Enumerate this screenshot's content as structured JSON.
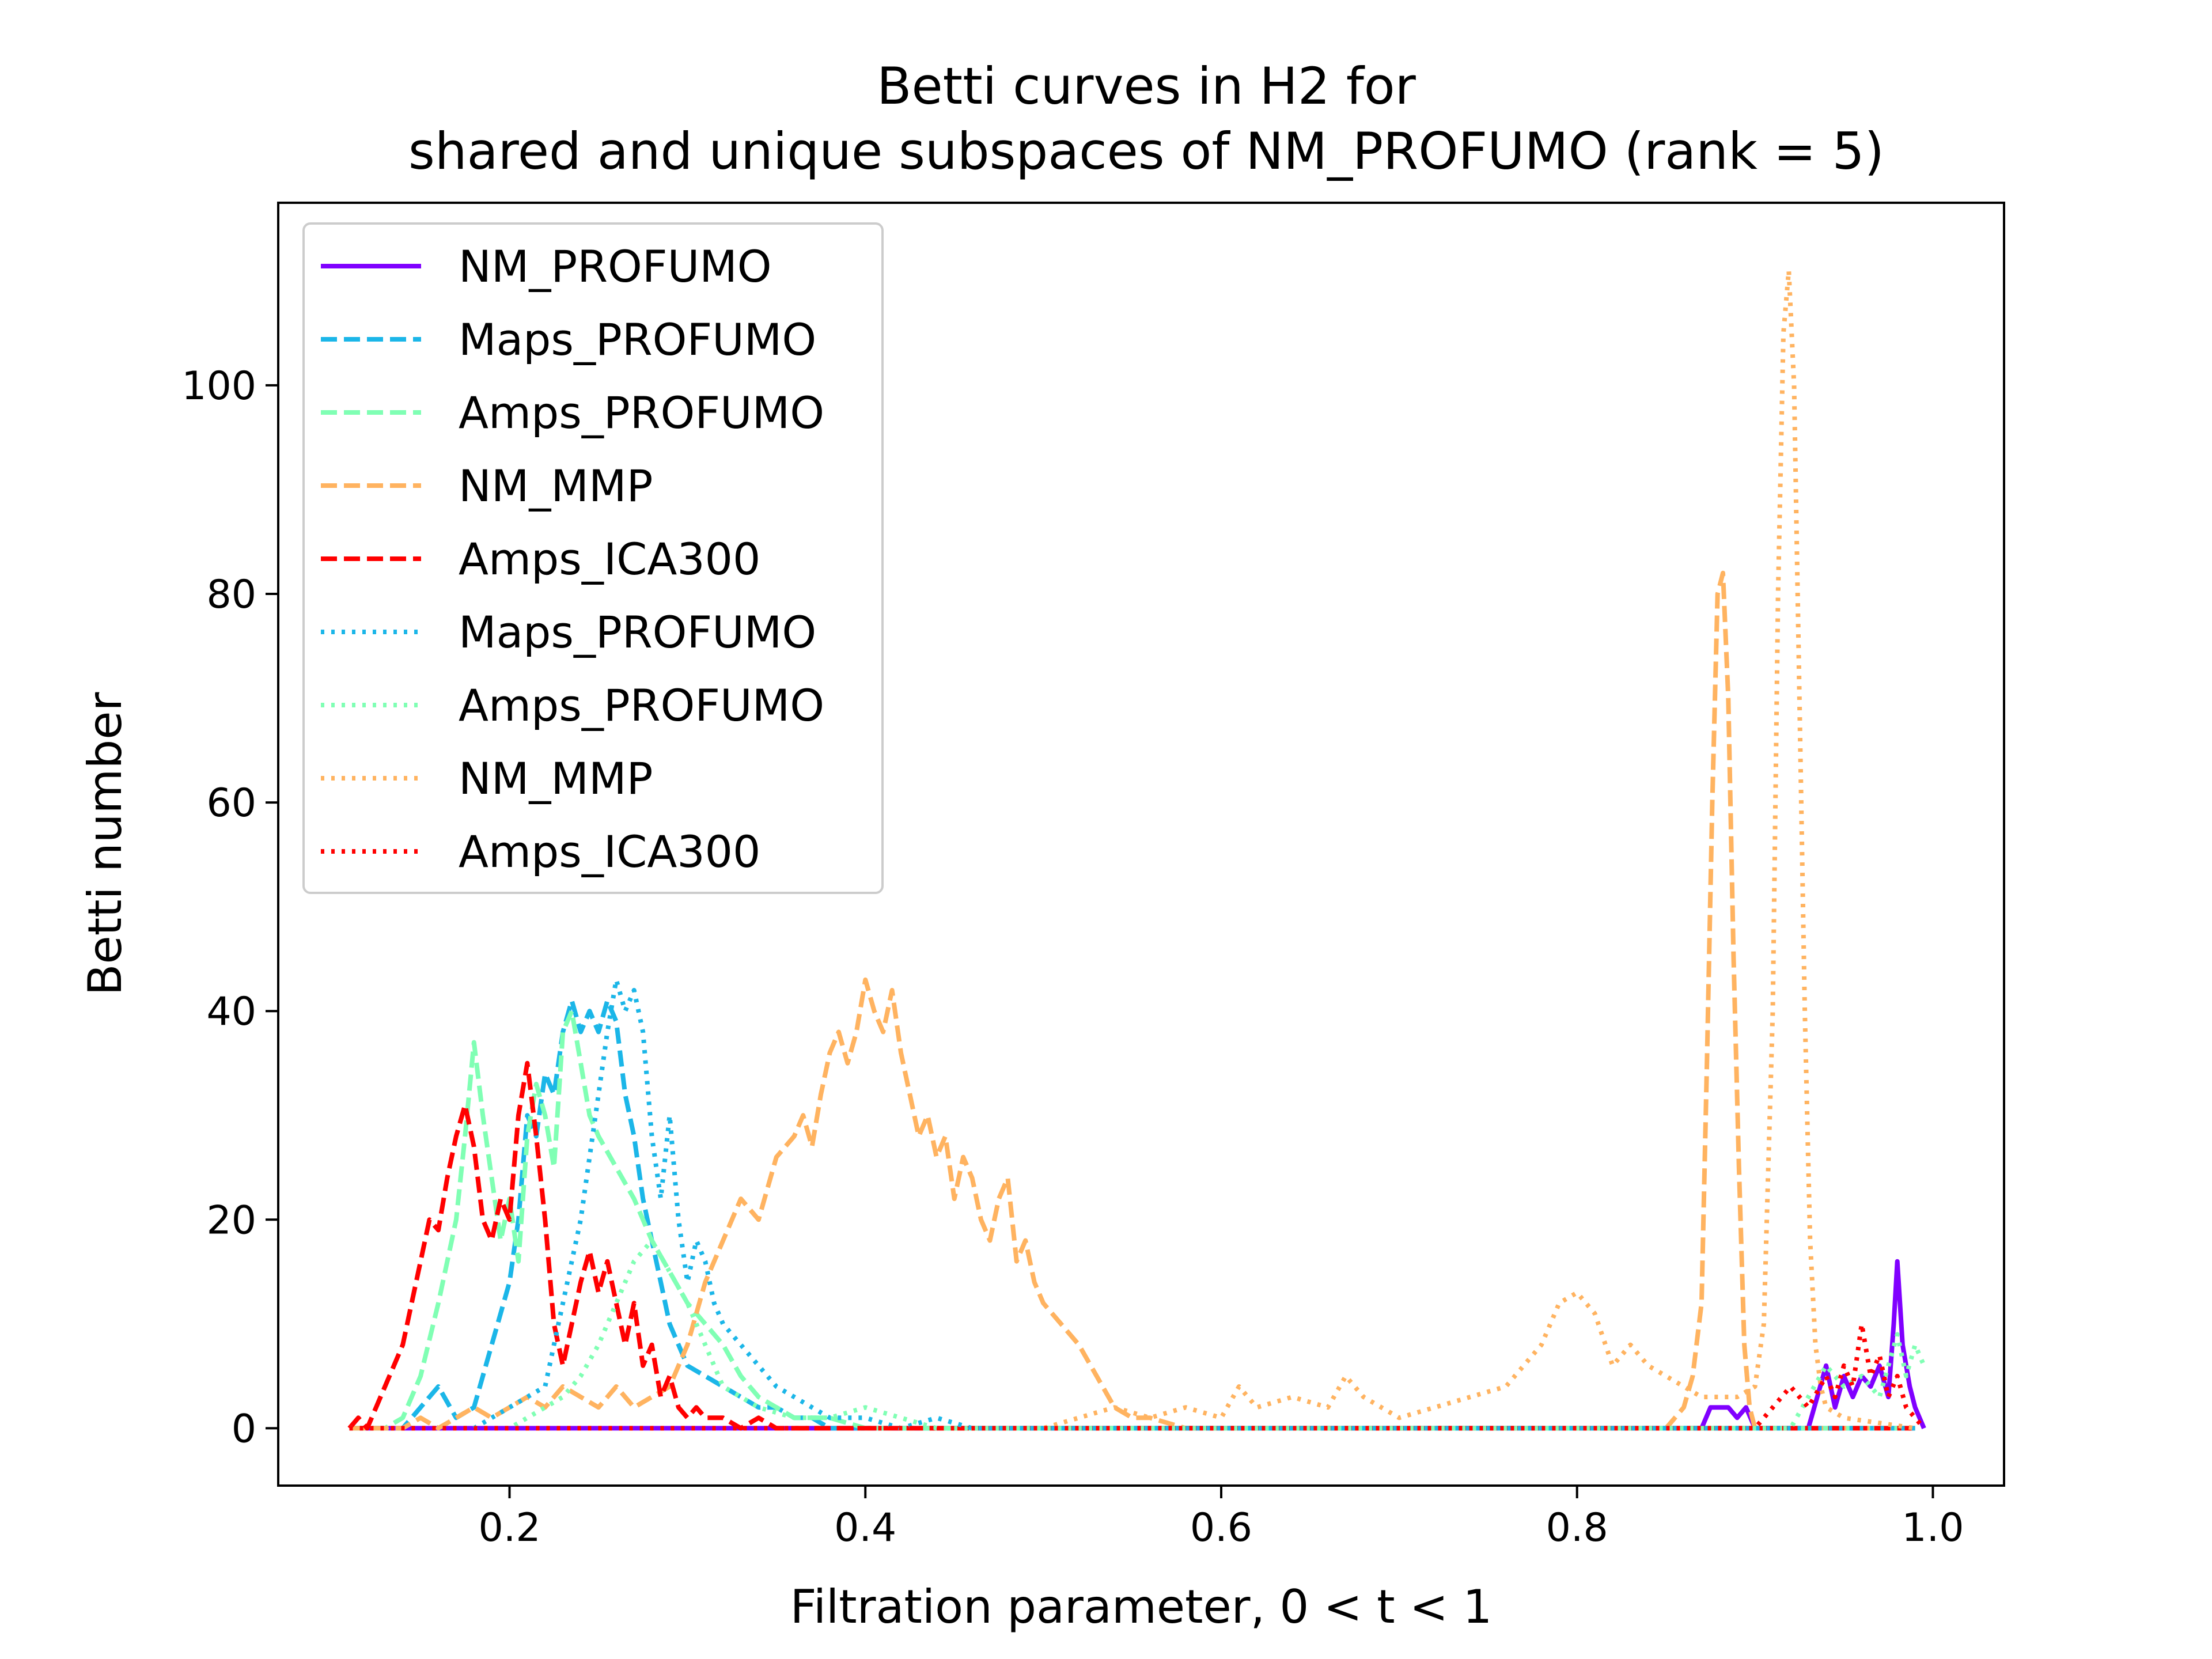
{
  "chart_data": {
    "type": "line",
    "title": [
      "Betti curves in H2 for",
      "shared and unique subspaces of NM_PROFUMO (rank = 5)"
    ],
    "xlabel": "Filtration parameter, 0 < t < 1",
    "ylabel": "Betti number",
    "xlim": [
      0.07,
      1.04
    ],
    "ylim": [
      -5.5,
      117.5
    ],
    "xticks": [
      0.2,
      0.4,
      0.6,
      0.8,
      1.0
    ],
    "xtick_labels": [
      "0.2",
      "0.4",
      "0.6",
      "0.8",
      "1.0"
    ],
    "yticks": [
      0,
      20,
      40,
      60,
      80,
      100
    ],
    "ytick_labels": [
      "0",
      "20",
      "40",
      "60",
      "80",
      "100"
    ],
    "grid": false,
    "legend_position": "top-left",
    "series": [
      {
        "name": "NM_PROFUMO",
        "color": "#8000ff",
        "style": "solid",
        "x": [
          0.11,
          0.87,
          0.875,
          0.885,
          0.89,
          0.895,
          0.9,
          0.93,
          0.935,
          0.94,
          0.945,
          0.95,
          0.955,
          0.96,
          0.965,
          0.97,
          0.975,
          0.978,
          0.98,
          0.983,
          0.987,
          0.99,
          0.995
        ],
        "y": [
          0,
          0,
          2,
          2,
          1,
          2,
          0,
          0,
          3,
          6,
          2,
          5,
          3,
          5,
          4,
          6,
          3,
          10,
          16,
          8,
          4,
          2,
          0
        ]
      },
      {
        "name": "Maps_PROFUMO",
        "color": "#1bb6e8",
        "style": "dashed",
        "x": [
          0.11,
          0.14,
          0.15,
          0.16,
          0.17,
          0.18,
          0.19,
          0.2,
          0.205,
          0.21,
          0.215,
          0.22,
          0.225,
          0.23,
          0.235,
          0.24,
          0.245,
          0.25,
          0.255,
          0.26,
          0.265,
          0.27,
          0.275,
          0.28,
          0.285,
          0.29,
          0.295,
          0.3,
          0.31,
          0.32,
          0.33,
          0.34,
          0.35,
          0.36,
          0.37,
          0.38,
          0.4,
          0.45,
          0.99
        ],
        "y": [
          0,
          0,
          2,
          4,
          1,
          2,
          8,
          14,
          20,
          30,
          28,
          34,
          32,
          38,
          41,
          38,
          40,
          38,
          41,
          39,
          32,
          28,
          22,
          18,
          14,
          10,
          8,
          6,
          5,
          4,
          3,
          2,
          2,
          1,
          1,
          0,
          0,
          0,
          0
        ]
      },
      {
        "name": "Amps_PROFUMO",
        "color": "#80ffb4",
        "style": "dashed",
        "x": [
          0.11,
          0.13,
          0.14,
          0.15,
          0.16,
          0.17,
          0.175,
          0.18,
          0.185,
          0.19,
          0.195,
          0.2,
          0.205,
          0.21,
          0.215,
          0.22,
          0.225,
          0.23,
          0.235,
          0.24,
          0.245,
          0.25,
          0.26,
          0.27,
          0.28,
          0.29,
          0.3,
          0.31,
          0.32,
          0.33,
          0.34,
          0.35,
          0.36,
          0.38,
          0.4,
          0.99
        ],
        "y": [
          0,
          0,
          1,
          5,
          12,
          20,
          28,
          37,
          30,
          24,
          18,
          22,
          16,
          28,
          33,
          30,
          25,
          38,
          40,
          35,
          30,
          28,
          25,
          22,
          18,
          15,
          12,
          10,
          8,
          5,
          3,
          2,
          1,
          1,
          0,
          0
        ]
      },
      {
        "name": "NM_MMP",
        "color": "#ffb360",
        "style": "dashed",
        "x": [
          0.11,
          0.14,
          0.15,
          0.16,
          0.17,
          0.18,
          0.19,
          0.2,
          0.21,
          0.22,
          0.23,
          0.24,
          0.25,
          0.26,
          0.27,
          0.28,
          0.29,
          0.3,
          0.31,
          0.32,
          0.33,
          0.34,
          0.35,
          0.36,
          0.365,
          0.37,
          0.375,
          0.38,
          0.385,
          0.39,
          0.395,
          0.4,
          0.405,
          0.41,
          0.415,
          0.42,
          0.425,
          0.43,
          0.435,
          0.44,
          0.445,
          0.45,
          0.455,
          0.46,
          0.465,
          0.47,
          0.475,
          0.48,
          0.485,
          0.49,
          0.495,
          0.5,
          0.51,
          0.52,
          0.53,
          0.54,
          0.55,
          0.56,
          0.58,
          0.6,
          0.62,
          0.65,
          0.7,
          0.8,
          0.85,
          0.86,
          0.865,
          0.87,
          0.873,
          0.876,
          0.879,
          0.882,
          0.885,
          0.888,
          0.891,
          0.894,
          0.897,
          0.9,
          0.91,
          0.99
        ],
        "y": [
          0,
          0,
          1,
          0,
          1,
          2,
          1,
          2,
          3,
          2,
          4,
          3,
          2,
          4,
          2,
          3,
          4,
          8,
          14,
          18,
          22,
          20,
          26,
          28,
          30,
          27,
          32,
          36,
          38,
          35,
          38,
          43,
          40,
          38,
          42,
          36,
          32,
          28,
          30,
          26,
          28,
          22,
          26,
          24,
          20,
          18,
          22,
          24,
          16,
          18,
          14,
          12,
          10,
          8,
          5,
          2,
          1,
          1,
          0,
          0,
          0,
          0,
          0,
          0,
          0,
          2,
          5,
          12,
          35,
          60,
          80,
          82,
          70,
          45,
          25,
          8,
          2,
          0,
          0,
          0
        ]
      },
      {
        "name": "Amps_ICA300",
        "color": "#ff0000",
        "style": "dashed",
        "x": [
          0.11,
          0.115,
          0.12,
          0.125,
          0.13,
          0.135,
          0.14,
          0.145,
          0.15,
          0.155,
          0.16,
          0.165,
          0.17,
          0.175,
          0.18,
          0.185,
          0.19,
          0.195,
          0.2,
          0.205,
          0.21,
          0.215,
          0.22,
          0.225,
          0.23,
          0.235,
          0.24,
          0.245,
          0.25,
          0.255,
          0.26,
          0.265,
          0.27,
          0.275,
          0.28,
          0.285,
          0.29,
          0.295,
          0.3,
          0.305,
          0.31,
          0.32,
          0.33,
          0.34,
          0.35,
          0.99
        ],
        "y": [
          0,
          1,
          0,
          2,
          4,
          6,
          8,
          12,
          16,
          20,
          19,
          24,
          28,
          31,
          27,
          20,
          18,
          22,
          20,
          30,
          35,
          28,
          20,
          10,
          6,
          10,
          14,
          17,
          13,
          16,
          12,
          8,
          12,
          6,
          8,
          3,
          5,
          2,
          1,
          2,
          1,
          1,
          0,
          1,
          0,
          0
        ]
      },
      {
        "name": "Maps_PROFUMO",
        "color": "#1bb6e8",
        "style": "dotted",
        "x": [
          0.11,
          0.18,
          0.19,
          0.2,
          0.21,
          0.22,
          0.225,
          0.23,
          0.235,
          0.24,
          0.245,
          0.25,
          0.255,
          0.26,
          0.265,
          0.27,
          0.275,
          0.28,
          0.285,
          0.29,
          0.295,
          0.3,
          0.305,
          0.31,
          0.315,
          0.32,
          0.33,
          0.34,
          0.35,
          0.36,
          0.37,
          0.38,
          0.39,
          0.4,
          0.42,
          0.44,
          0.46,
          0.99
        ],
        "y": [
          0,
          0,
          1,
          2,
          3,
          4,
          8,
          12,
          16,
          20,
          26,
          32,
          38,
          43,
          40,
          42,
          38,
          28,
          22,
          30,
          20,
          14,
          18,
          16,
          12,
          10,
          8,
          6,
          4,
          3,
          2,
          1,
          1,
          1,
          0,
          1,
          0,
          0
        ]
      },
      {
        "name": "Amps_PROFUMO",
        "color": "#80ffb4",
        "style": "dotted",
        "x": [
          0.11,
          0.2,
          0.21,
          0.22,
          0.23,
          0.24,
          0.25,
          0.26,
          0.27,
          0.28,
          0.29,
          0.3,
          0.31,
          0.32,
          0.34,
          0.36,
          0.38,
          0.4,
          0.42,
          0.44,
          0.92,
          0.93,
          0.94,
          0.95,
          0.96,
          0.97,
          0.975,
          0.98,
          0.985,
          0.99,
          0.995
        ],
        "y": [
          0,
          0,
          1,
          2,
          3,
          5,
          8,
          12,
          16,
          18,
          15,
          12,
          8,
          4,
          2,
          1,
          1,
          2,
          1,
          0,
          0,
          3,
          6,
          4,
          5,
          3,
          6,
          9,
          5,
          8,
          6
        ]
      },
      {
        "name": "NM_MMP",
        "color": "#ffb360",
        "style": "dotted",
        "x": [
          0.11,
          0.5,
          0.52,
          0.54,
          0.56,
          0.58,
          0.6,
          0.61,
          0.62,
          0.64,
          0.66,
          0.67,
          0.68,
          0.7,
          0.72,
          0.74,
          0.76,
          0.78,
          0.79,
          0.8,
          0.81,
          0.82,
          0.83,
          0.84,
          0.85,
          0.86,
          0.87,
          0.88,
          0.89,
          0.9,
          0.905,
          0.91,
          0.913,
          0.916,
          0.919,
          0.922,
          0.925,
          0.928,
          0.931,
          0.934,
          0.937,
          0.94,
          0.95,
          0.99
        ],
        "y": [
          0,
          0,
          1,
          2,
          1,
          2,
          1,
          4,
          2,
          3,
          2,
          5,
          3,
          1,
          2,
          3,
          4,
          8,
          12,
          13,
          11,
          6,
          8,
          6,
          5,
          4,
          3,
          3,
          3,
          4,
          10,
          40,
          80,
          105,
          111,
          100,
          70,
          40,
          18,
          8,
          4,
          2,
          1,
          0
        ]
      },
      {
        "name": "Amps_ICA300",
        "color": "#ff0000",
        "style": "dotted",
        "x": [
          0.11,
          0.9,
          0.91,
          0.92,
          0.93,
          0.94,
          0.945,
          0.95,
          0.955,
          0.96,
          0.965,
          0.97,
          0.975,
          0.98,
          0.985,
          0.99,
          0.995
        ],
        "y": [
          0,
          0,
          2,
          4,
          2,
          5,
          3,
          6,
          4,
          10,
          5,
          7,
          3,
          5,
          2,
          1,
          0
        ]
      }
    ]
  }
}
